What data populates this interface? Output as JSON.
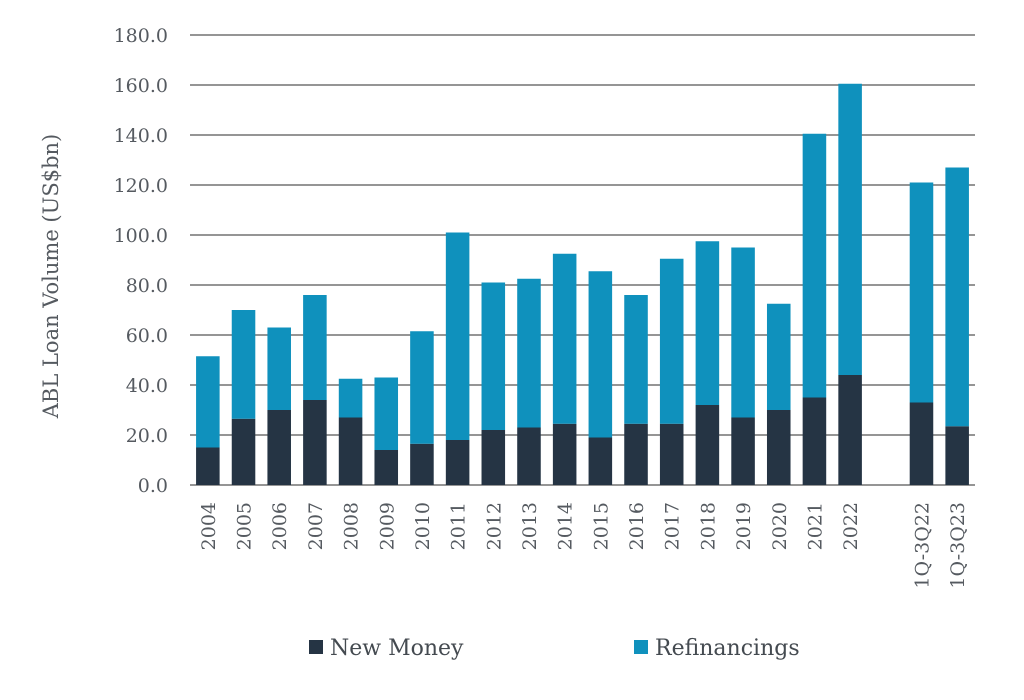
{
  "chart_data": {
    "type": "bar",
    "stacked": true,
    "ylabel": "ABL Loan Volume (US$bn)",
    "ylim": [
      0,
      180
    ],
    "yticks": [
      "0.0",
      "20.0",
      "40.0",
      "60.0",
      "80.0",
      "100.0",
      "120.0",
      "140.0",
      "160.0",
      "180.0"
    ],
    "grid": true,
    "legend_position": "bottom",
    "categories": [
      "2004",
      "2005",
      "2006",
      "2007",
      "2008",
      "2009",
      "2010",
      "2011",
      "2012",
      "2013",
      "2014",
      "2015",
      "2016",
      "2017",
      "2018",
      "2019",
      "2020",
      "2021",
      "2022",
      "",
      "1Q-3Q22",
      "1Q-3Q23"
    ],
    "series": [
      {
        "name": "New Money",
        "color": "#253444",
        "values": [
          15,
          26.5,
          30,
          34,
          27,
          14,
          16.5,
          18,
          22,
          23,
          24.5,
          19,
          24.5,
          24.5,
          32,
          27,
          30,
          35,
          44,
          null,
          33,
          23.5
        ]
      },
      {
        "name": "Refinancings",
        "color": "#0f91bd",
        "values": [
          36.5,
          43.5,
          33,
          42,
          15.5,
          29,
          45,
          83,
          59,
          59.5,
          68,
          66.5,
          51.5,
          66,
          65.5,
          68,
          42.5,
          105.5,
          116.5,
          null,
          88,
          103.5
        ]
      }
    ]
  }
}
